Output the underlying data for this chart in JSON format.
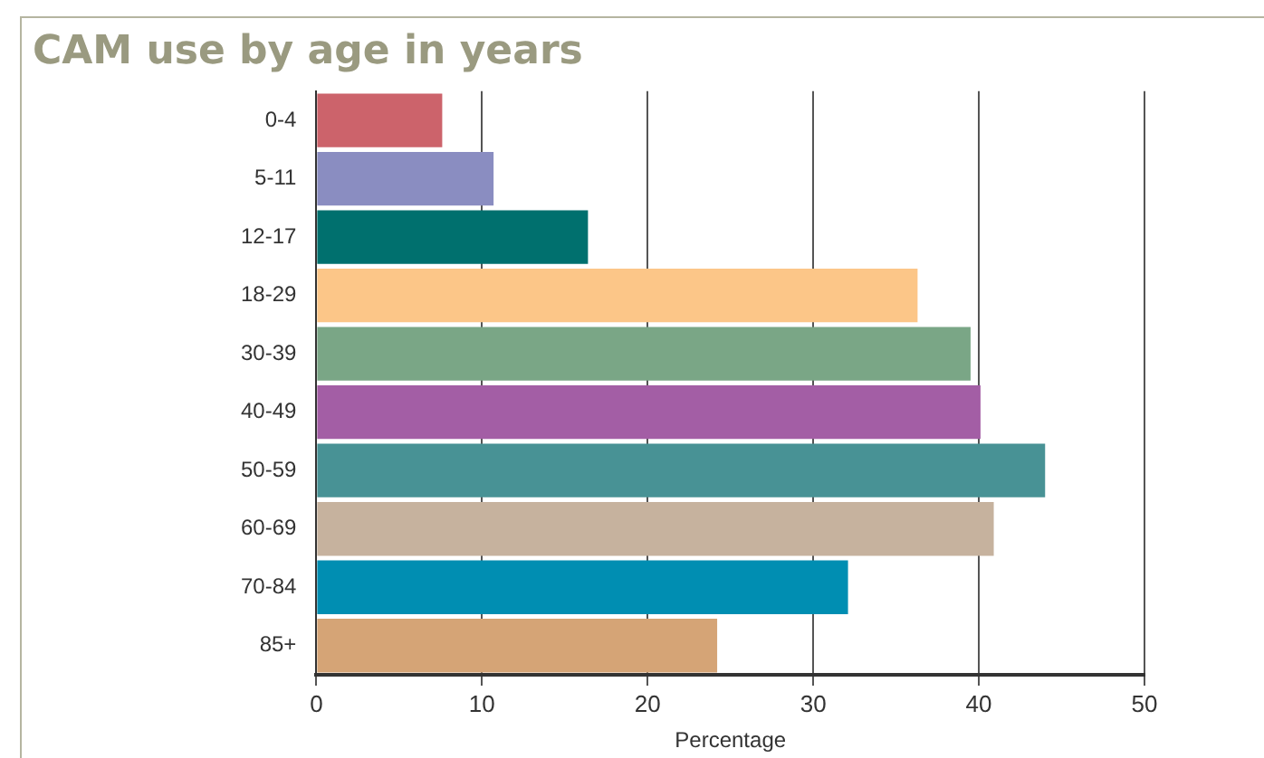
{
  "chart_data": {
    "type": "bar",
    "orientation": "horizontal",
    "title": "CAM use by age in years",
    "xlabel": "Percentage",
    "categories": [
      "0-4",
      "5-11",
      "12-17",
      "18-29",
      "30-39",
      "40-49",
      "50-59",
      "60-69",
      "70-84",
      "85+"
    ],
    "values": [
      7.6,
      10.7,
      16.4,
      36.3,
      39.5,
      40.1,
      44.0,
      40.9,
      32.1,
      24.2
    ],
    "colors": [
      "#cc636b",
      "#8a8dc1",
      "#00706e",
      "#fcc688",
      "#7aa686",
      "#a35ea5",
      "#489295",
      "#c6b29e",
      "#008eb2",
      "#d5a476"
    ],
    "xlim": [
      0,
      50
    ],
    "xticks": [
      0,
      10,
      20,
      30,
      40,
      50
    ],
    "grid": "x",
    "legend": false
  }
}
